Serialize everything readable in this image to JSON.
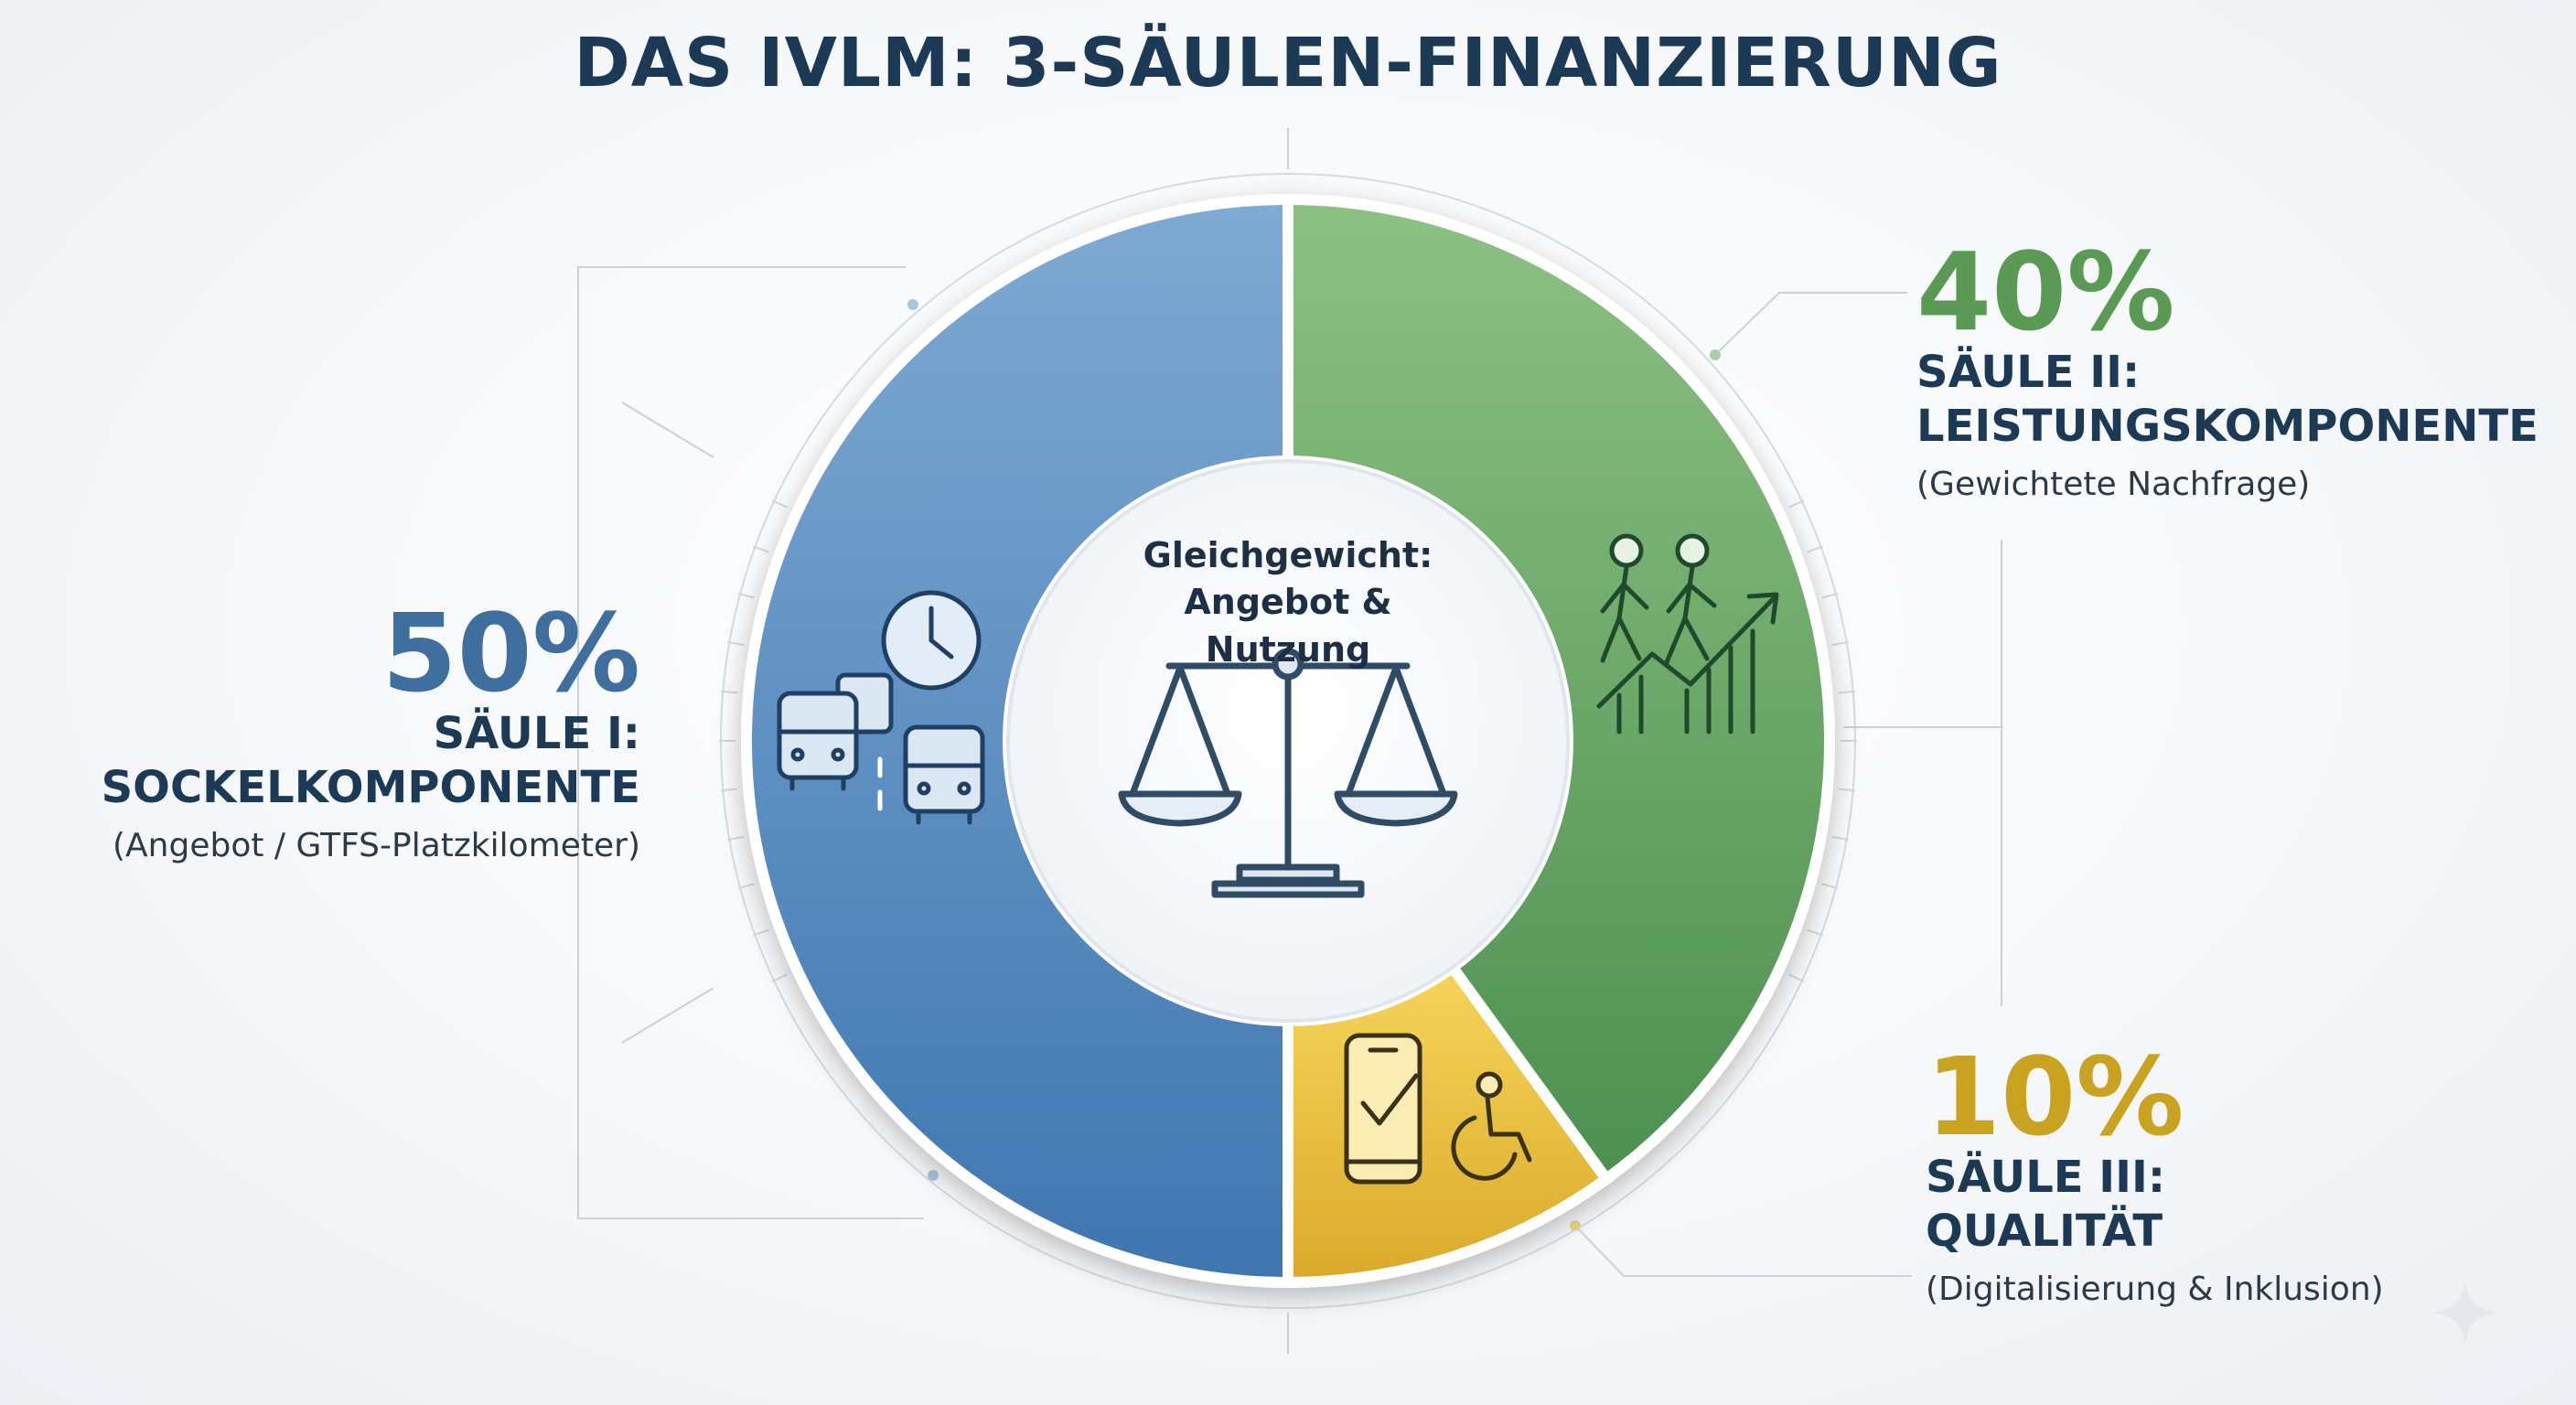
{
  "chart_data": {
    "type": "pie",
    "title": "DAS IVLM: 3-SÄULEN-FINANZIERUNG",
    "center_label": [
      "Gleichgewicht:",
      "Angebot & Nutzung"
    ],
    "slices": [
      {
        "value": 50,
        "percent_label": "50%",
        "name_lines": [
          "SÄULE I:",
          "SOCKELKOMPONENTE"
        ],
        "description": "(Angebot / GTFS-Platzkilometer)",
        "color": "#4d86bf",
        "icon": "bus-clock-icon"
      },
      {
        "value": 40,
        "percent_label": "40%",
        "name_lines": [
          "SÄULE II:",
          "LEISTUNGSKOMPONENTE"
        ],
        "description": "(Gewichtete Nachfrage)",
        "color": "#5fa05c",
        "icon": "people-growth-icon"
      },
      {
        "value": 10,
        "percent_label": "10%",
        "name_lines": [
          "SÄULE III:",
          "QUALITÄT"
        ],
        "description": "(Digitalisierung & Inklusion)",
        "color": "#e3b434",
        "icon": "phone-accessibility-icon"
      }
    ],
    "colors": {
      "title": "#1c3a56",
      "pct_blue": "#3f6f9e",
      "pct_green": "#5a9a54",
      "pct_gold": "#c9a21f"
    }
  }
}
